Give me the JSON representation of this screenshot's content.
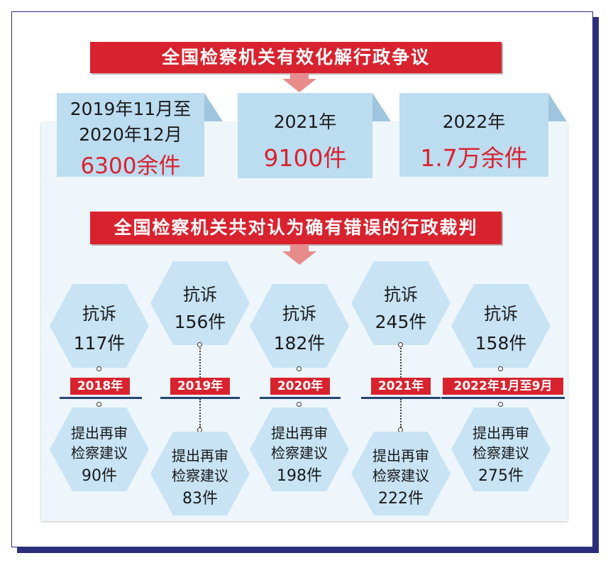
{
  "banner_top": "全国检察机关有效化解行政争议",
  "banner_mid": "全国检察机关共对认为确有错误的行政裁判",
  "tabs": [
    {
      "line1": "2019年11月至",
      "line2": "2020年12月",
      "value": "6300余件"
    },
    {
      "line1": "2021年",
      "value": "9100件"
    },
    {
      "line1": "2022年",
      "value": "1.7万余件"
    }
  ],
  "years": [
    {
      "label": "2018年",
      "appeal_title": "抗诉",
      "appeal_count": "117件",
      "rec_line1": "提出再审",
      "rec_line2": "检察建议",
      "rec_count": "90件"
    },
    {
      "label": "2019年",
      "appeal_title": "抗诉",
      "appeal_count": "156件",
      "rec_line1": "提出再审",
      "rec_line2": "检察建议",
      "rec_count": "83件"
    },
    {
      "label": "2020年",
      "appeal_title": "抗诉",
      "appeal_count": "182件",
      "rec_line1": "提出再审",
      "rec_line2": "检察建议",
      "rec_count": "198件"
    },
    {
      "label": "2021年",
      "appeal_title": "抗诉",
      "appeal_count": "245件",
      "rec_line1": "提出再审",
      "rec_line2": "检察建议",
      "rec_count": "222件"
    },
    {
      "label": "2022年1月至9月",
      "appeal_title": "抗诉",
      "appeal_count": "158件",
      "rec_line1": "提出再审",
      "rec_line2": "检察建议",
      "rec_count": "275件"
    }
  ],
  "colors": {
    "banner": "#d8232f",
    "hex": "#c7e3f4",
    "tab": "#bcdcf0",
    "frame": "#2b2f7a",
    "arrow": "#e78b8b"
  }
}
